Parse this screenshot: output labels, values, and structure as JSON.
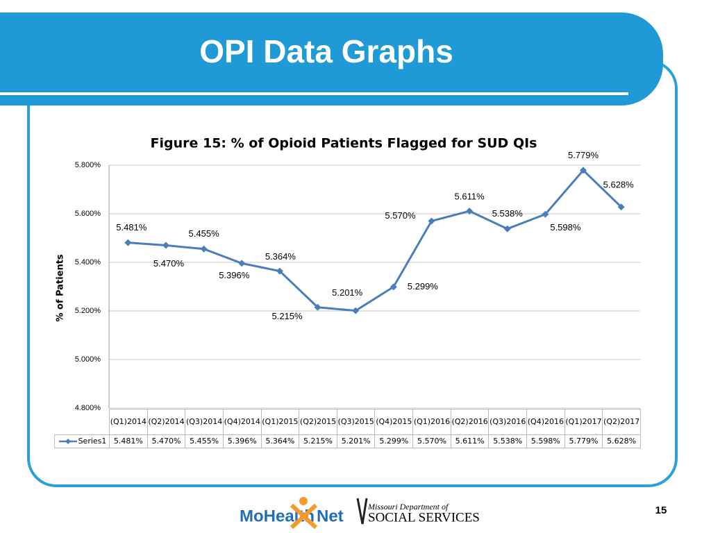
{
  "header": {
    "title": "OPI Data Graphs"
  },
  "chart_data": {
    "type": "line",
    "title": "Figure 15: % of Opioid Patients Flagged for SUD QIs",
    "y_label": "% of Patients",
    "categories": [
      "(Q1)2014",
      "(Q2)2014",
      "(Q3)2014",
      "(Q4)2014",
      "(Q1)2015",
      "(Q2)2015",
      "(Q3)2015",
      "(Q4)2015",
      "(Q1)2016",
      "(Q2)2016",
      "(Q3)2016",
      "(Q4)2016",
      "(Q1)2017",
      "(Q2)2017"
    ],
    "series": [
      {
        "name": "Series1",
        "color": "#4a7ebb",
        "values": [
          5.481,
          5.47,
          5.455,
          5.396,
          5.364,
          5.215,
          5.201,
          5.299,
          5.57,
          5.611,
          5.538,
          5.598,
          5.779,
          5.628
        ],
        "value_labels": [
          "5.481%",
          "5.470%",
          "5.455%",
          "5.396%",
          "5.364%",
          "5.215%",
          "5.201%",
          "5.299%",
          "5.570%",
          "5.611%",
          "5.538%",
          "5.598%",
          "5.779%",
          "5.628%"
        ]
      }
    ],
    "ylim": [
      4.8,
      5.8
    ],
    "yticks": [
      {
        "value": 4.8,
        "label": "4.800%"
      },
      {
        "value": 5.0,
        "label": "5.000%"
      },
      {
        "value": 5.2,
        "label": "5.200%"
      },
      {
        "value": 5.4,
        "label": "5.400%"
      },
      {
        "value": 5.6,
        "label": "5.600%"
      },
      {
        "value": 5.8,
        "label": "5.800%"
      }
    ],
    "grid": true,
    "legend": "data-table"
  },
  "footer": {
    "logo1_a": "MoHealth",
    "logo1_b": "Net",
    "logo2_small": "Missouri Department of",
    "logo2_big": "SOCIAL SERVICES",
    "page_number": "15"
  }
}
